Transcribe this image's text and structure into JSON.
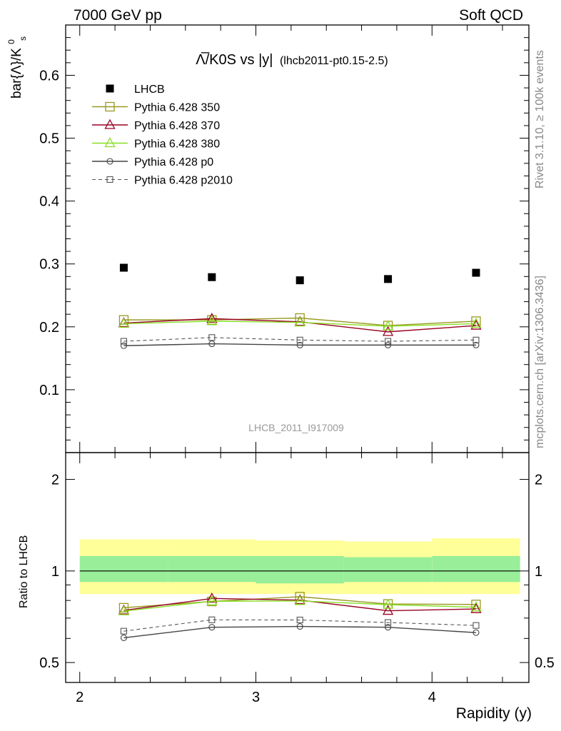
{
  "header": {
    "left": "7000 GeV pp",
    "right": "Soft QCD"
  },
  "side_labels": {
    "rivet": "Rivet 3.1.10, ≥ 100k events",
    "mcplots": "mcplots.cern.ch [arXiv:1306.3436]"
  },
  "watermark": "LHCB_2011_I917009",
  "chart_data": [
    {
      "type": "scatter",
      "title_main": "Λ̅/K0S vs |y|",
      "title_sub": "(lhcb2011-pt0.15-2.5)",
      "ylabel": "bar{Λ}/K",
      "ylabel_sup": "0",
      "ylabel_sub": "s",
      "xlim": [
        1.92,
        4.55
      ],
      "ylim": [
        0.0,
        0.68
      ],
      "yticks": [
        0.1,
        0.2,
        0.3,
        0.4,
        0.5,
        0.6
      ],
      "ytick_labels": [
        "0.1",
        "0.2",
        "0.3",
        "0.4",
        "0.5",
        "0.6"
      ],
      "legend_position": "top-left",
      "x": [
        2.25,
        2.75,
        3.25,
        3.75,
        4.25
      ],
      "series": [
        {
          "name": "LHCB",
          "values": [
            0.294,
            0.279,
            0.274,
            0.276,
            0.286
          ],
          "color": "#000000",
          "marker": "filled-square",
          "line": "none"
        },
        {
          "name": "Pythia 6.428 350",
          "values": [
            0.211,
            0.211,
            0.214,
            0.202,
            0.209
          ],
          "color": "#999922",
          "marker": "open-square",
          "line": "solid"
        },
        {
          "name": "Pythia 6.428 370",
          "values": [
            0.206,
            0.213,
            0.208,
            0.192,
            0.202
          ],
          "color": "#990022",
          "marker": "open-triangle",
          "line": "solid"
        },
        {
          "name": "Pythia 6.428 380",
          "values": [
            0.205,
            0.209,
            0.207,
            0.201,
            0.205
          ],
          "color": "#88dd22",
          "marker": "open-triangle",
          "line": "solid"
        },
        {
          "name": "Pythia 6.428 p0",
          "values": [
            0.17,
            0.173,
            0.171,
            0.171,
            0.171
          ],
          "color": "#444444",
          "marker": "open-circle",
          "line": "solid"
        },
        {
          "name": "Pythia 6.428 p2010",
          "values": [
            0.177,
            0.183,
            0.179,
            0.177,
            0.179
          ],
          "color": "#555555",
          "marker": "open-square-small",
          "line": "dashed"
        }
      ]
    },
    {
      "type": "line",
      "ylabel": "Ratio to LHCB",
      "xlabel": "Rapidity (y)",
      "xlim": [
        1.92,
        4.55
      ],
      "ylim": [
        0.43,
        2.45
      ],
      "xticks": [
        2,
        3,
        4
      ],
      "xtick_labels": [
        "2",
        "3",
        "4"
      ],
      "yticks": [
        0.5,
        1,
        2
      ],
      "ytick_labels": [
        "0.5",
        "1",
        "2"
      ],
      "log_y": true,
      "x": [
        2.25,
        2.75,
        3.25,
        3.75,
        4.25
      ],
      "bands": {
        "x_edges": [
          2.0,
          2.5,
          3.0,
          3.5,
          4.0,
          4.5
        ],
        "yellow_lo": [
          0.84,
          0.84,
          0.84,
          0.84,
          0.84
        ],
        "yellow_hi": [
          1.27,
          1.27,
          1.26,
          1.25,
          1.28
        ],
        "green_lo": [
          0.92,
          0.92,
          0.91,
          0.92,
          0.92
        ],
        "green_hi": [
          1.12,
          1.12,
          1.12,
          1.11,
          1.12
        ]
      },
      "series": [
        {
          "name": "Pythia 6.428 350",
          "values": [
            0.757,
            0.794,
            0.823,
            0.779,
            0.776
          ],
          "color": "#999922",
          "marker": "open-square",
          "line": "solid"
        },
        {
          "name": "Pythia 6.428 370",
          "values": [
            0.742,
            0.812,
            0.802,
            0.74,
            0.75
          ],
          "color": "#990022",
          "marker": "open-triangle",
          "line": "solid"
        },
        {
          "name": "Pythia 6.428 380",
          "values": [
            0.738,
            0.795,
            0.797,
            0.775,
            0.76
          ],
          "color": "#88dd22",
          "marker": "open-triangle",
          "line": "solid"
        },
        {
          "name": "Pythia 6.428 p0",
          "values": [
            0.603,
            0.653,
            0.657,
            0.653,
            0.627
          ],
          "color": "#444444",
          "marker": "open-circle",
          "line": "solid"
        },
        {
          "name": "Pythia 6.428 p2010",
          "values": [
            0.634,
            0.691,
            0.69,
            0.677,
            0.662
          ],
          "color": "#555555",
          "marker": "open-square-small",
          "line": "dashed"
        }
      ]
    }
  ]
}
